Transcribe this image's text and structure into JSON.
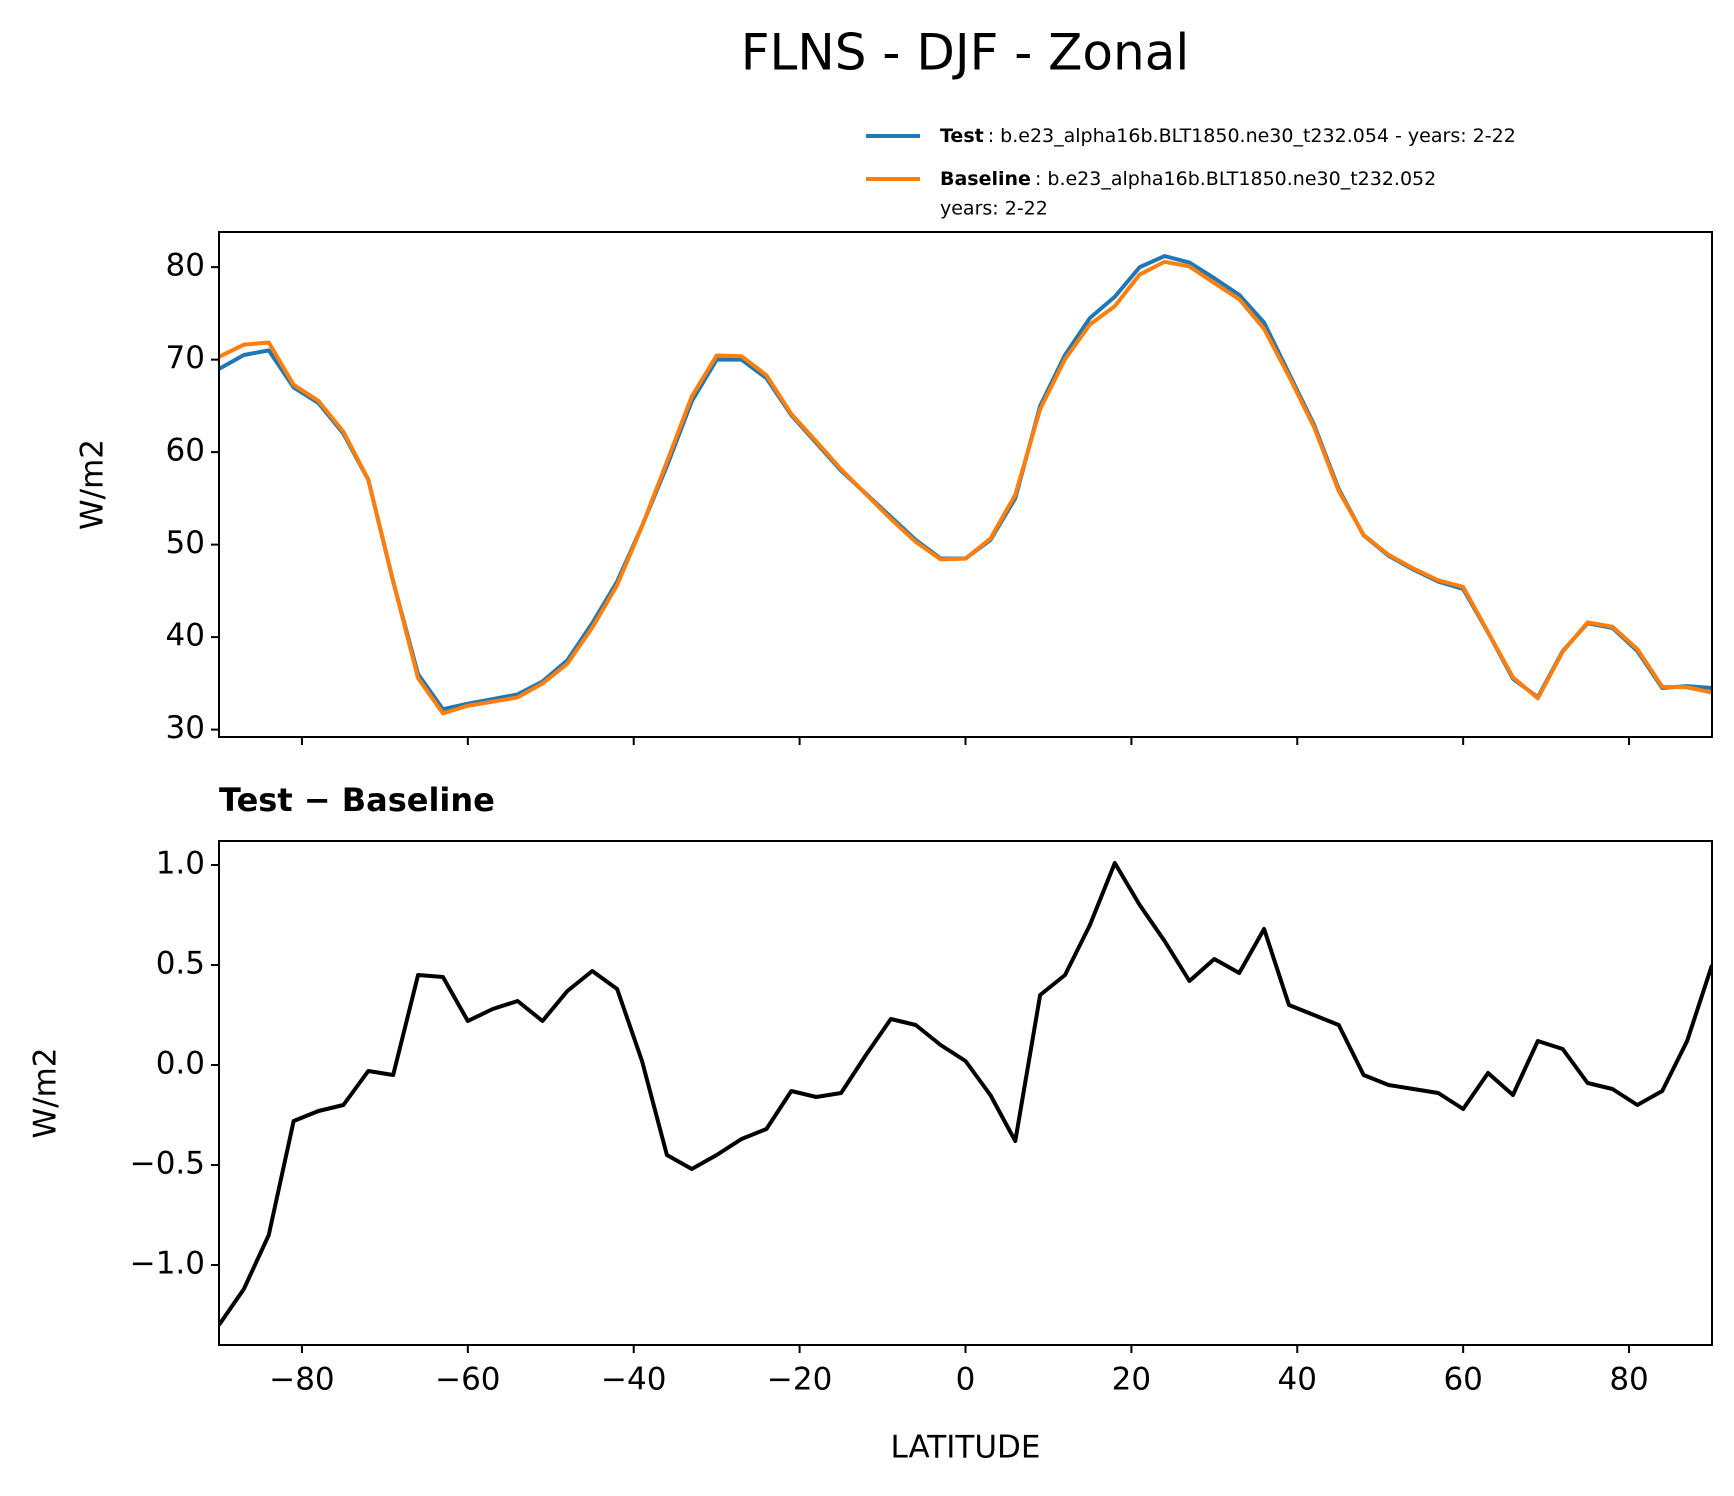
{
  "title": "FLNS - DJF - Zonal",
  "chart_data": [
    {
      "type": "line",
      "ylabel": "W/m2",
      "x": [
        -90,
        -87,
        -84,
        -81,
        -78,
        -75,
        -72,
        -69,
        -66,
        -63,
        -60,
        -57,
        -54,
        -51,
        -48,
        -45,
        -42,
        -39,
        -36,
        -33,
        -30,
        -27,
        -24,
        -21,
        -18,
        -15,
        -12,
        -9,
        -6,
        -3,
        0,
        3,
        6,
        9,
        12,
        15,
        18,
        21,
        24,
        27,
        30,
        33,
        36,
        39,
        42,
        45,
        48,
        51,
        54,
        57,
        60,
        63,
        66,
        69,
        72,
        75,
        78,
        81,
        84,
        87,
        90
      ],
      "series": [
        {
          "name": "Test",
          "description": [
            ": b.e23_alpha16b.BLT1850.ne30_t232.054 - years: 2-22"
          ],
          "color": "#1f77b4",
          "values": [
            69,
            70.5,
            71,
            67,
            65.3,
            62,
            57,
            46,
            36,
            32.2,
            32.8,
            33.3,
            33.8,
            35.2,
            37.5,
            41.5,
            46,
            52,
            58.5,
            65.5,
            70,
            70,
            68,
            64,
            61,
            58,
            55.5,
            53,
            50.5,
            48.5,
            48.5,
            50.5,
            55,
            65,
            70.5,
            74.5,
            76.8,
            80,
            81.2,
            80.5,
            78.8,
            77,
            74,
            68.5,
            63,
            56,
            51,
            48.8,
            47.3,
            46,
            45.2,
            40.5,
            35.5,
            33.5,
            38.5,
            41.5,
            41,
            38.5,
            34.5,
            34.7,
            34.5
          ]
        },
        {
          "name": "Baseline",
          "description": [
            ": b.e23_alpha16b.BLT1850.ne30_t232.052",
            "years: 2-22"
          ],
          "color": "#ff7f0e",
          "values": [
            70.3,
            71.62,
            71.85,
            67.28,
            65.53,
            62.2,
            57.03,
            46.05,
            35.55,
            31.76,
            32.58,
            33.02,
            33.48,
            34.98,
            37.13,
            41.03,
            45.62,
            51.98,
            58.95,
            66.02,
            70.45,
            70.37,
            68.32,
            64.13,
            61.16,
            58.14,
            55.45,
            52.77,
            50.3,
            48.4,
            48.48,
            50.65,
            55.38,
            64.65,
            70.05,
            73.8,
            75.79,
            79.2,
            80.58,
            80.08,
            78.27,
            76.54,
            73.32,
            68.2,
            62.75,
            55.8,
            51.05,
            48.9,
            47.42,
            46.14,
            45.42,
            40.54,
            35.65,
            33.38,
            38.42,
            41.59,
            41.12,
            38.7,
            34.63,
            34.58,
            34
          ]
        }
      ],
      "xlim": [
        -90,
        90
      ],
      "xticks": [
        -80,
        -60,
        -40,
        -20,
        0,
        20,
        40,
        60,
        80
      ],
      "xtick_labels": false,
      "ylim": [
        29.2,
        83.8
      ],
      "yticks": [
        30,
        40,
        50,
        60,
        70,
        80
      ],
      "grid": false,
      "legend": true
    },
    {
      "type": "line",
      "title": "Test − Baseline",
      "ylabel": "W/m2",
      "xlabel": "LATITUDE",
      "x": [
        -90,
        -87,
        -84,
        -81,
        -78,
        -75,
        -72,
        -69,
        -66,
        -63,
        -60,
        -57,
        -54,
        -51,
        -48,
        -45,
        -42,
        -39,
        -36,
        -33,
        -30,
        -27,
        -24,
        -21,
        -18,
        -15,
        -12,
        -9,
        -6,
        -3,
        0,
        3,
        6,
        9,
        12,
        15,
        18,
        21,
        24,
        27,
        30,
        33,
        36,
        39,
        42,
        45,
        48,
        51,
        54,
        57,
        60,
        63,
        66,
        69,
        72,
        75,
        78,
        81,
        84,
        87,
        90
      ],
      "series": [
        {
          "color": "#000000",
          "values": [
            -1.3,
            -1.12,
            -0.85,
            -0.28,
            -0.23,
            -0.2,
            -0.03,
            -0.05,
            0.45,
            0.44,
            0.22,
            0.28,
            0.32,
            0.22,
            0.37,
            0.47,
            0.38,
            0.02,
            -0.45,
            -0.52,
            -0.45,
            -0.37,
            -0.32,
            -0.13,
            -0.16,
            -0.14,
            0.05,
            0.23,
            0.2,
            0.1,
            0.02,
            -0.15,
            -0.38,
            0.35,
            0.45,
            0.7,
            1.01,
            0.8,
            0.62,
            0.42,
            0.53,
            0.46,
            0.68,
            0.3,
            0.25,
            0.2,
            -0.05,
            -0.1,
            -0.12,
            -0.14,
            -0.22,
            -0.04,
            -0.15,
            0.12,
            0.08,
            -0.09,
            -0.12,
            -0.2,
            -0.13,
            0.12,
            0.5
          ]
        }
      ],
      "xlim": [
        -90,
        90
      ],
      "xticks": [
        {
          "value": -80,
          "label": "−80"
        },
        {
          "value": -60,
          "label": "−60"
        },
        {
          "value": -40,
          "label": "−40"
        },
        {
          "value": -20,
          "label": "−20"
        },
        0,
        20,
        40,
        60,
        80
      ],
      "xtick_labels": true,
      "ylim": [
        -1.4,
        1.12
      ],
      "yticks": [
        {
          "value": -1.0,
          "label": "−1.0"
        },
        {
          "value": -0.5,
          "label": "−0.5"
        },
        {
          "value": 0,
          "label": "0.0"
        },
        {
          "value": 0.5,
          "label": "0.5"
        },
        {
          "value": 1.0,
          "label": "1.0"
        }
      ],
      "grid": false,
      "legend": false
    }
  ]
}
